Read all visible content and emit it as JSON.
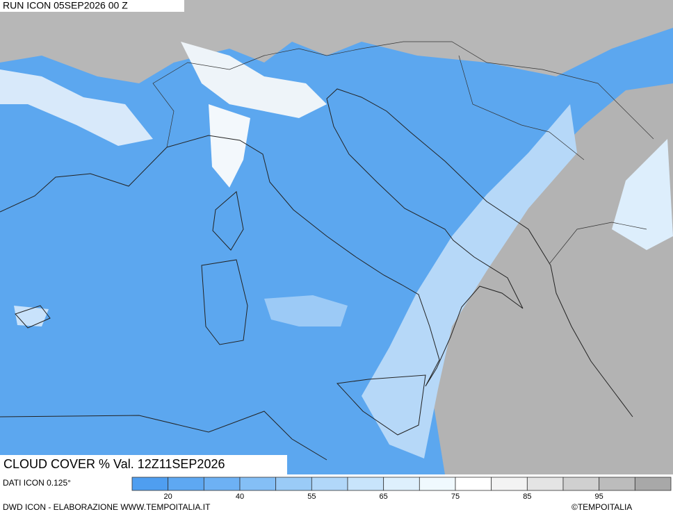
{
  "header": {
    "run": "RUN ICON 05SEP2026 00 Z",
    "product": "CLOUD COVER % Val. 12Z11SEP2026"
  },
  "footer": {
    "resolution": "DATI ICON 0.125°",
    "source": "DWD ICON - ELABORAZIONE WWW.TEMPOITALIA.IT",
    "copyright": "©TEMPOITALIA"
  },
  "legend": {
    "colors": [
      "#4f9ef0",
      "#5ea8f2",
      "#6db1f4",
      "#84bff6",
      "#9acbf7",
      "#b1d7f9",
      "#c8e4fb",
      "#def0fd",
      "#f0f9fe",
      "#ffffff",
      "#f3f3f3",
      "#e4e4e4",
      "#d0d0d0",
      "#bcbcbc",
      "#a8a8a8"
    ],
    "labels": [
      20,
      40,
      55,
      65,
      75,
      85,
      95
    ]
  }
}
